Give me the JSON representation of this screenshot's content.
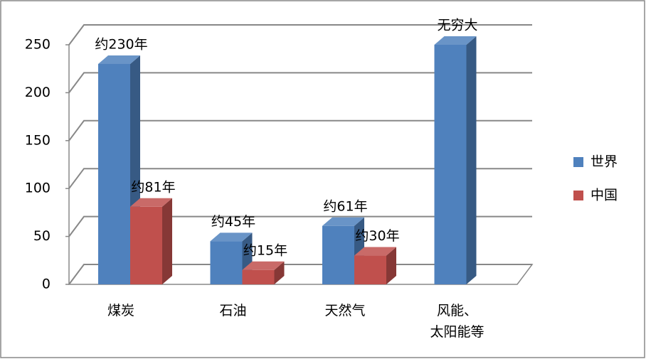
{
  "chart_data": {
    "type": "bar3d",
    "categories": [
      "煤炭",
      "石油",
      "天然气",
      "风能、\n太阳能等"
    ],
    "series": [
      {
        "name": "世界",
        "color": "#4F81BD",
        "values": [
          230,
          45,
          61,
          250
        ],
        "value_labels": [
          "约230年",
          "约45年",
          "约61年",
          "无穷大"
        ]
      },
      {
        "name": "中国",
        "color": "#C0504D",
        "values": [
          81,
          15,
          30,
          null
        ],
        "value_labels": [
          "约81年",
          "约15年",
          "约30年",
          null
        ]
      }
    ],
    "ylim": [
      0,
      250
    ],
    "yticks": [
      0,
      50,
      100,
      150,
      200,
      250
    ],
    "grid": true,
    "legend": "right"
  }
}
